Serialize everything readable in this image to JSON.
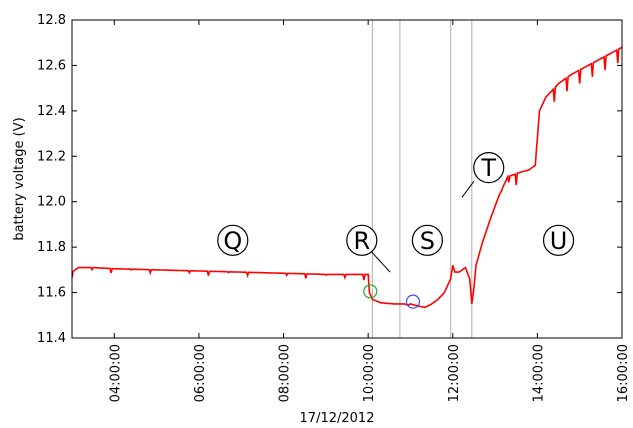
{
  "chart_data": {
    "type": "line",
    "xlabel": "17/12/2012",
    "ylabel": "battery voltage (V)",
    "xlim": [
      3.0,
      16.0
    ],
    "ylim": [
      11.4,
      12.8
    ],
    "x_ticks": [
      "04:00:00",
      "06:00:00",
      "08:00:00",
      "10:00:00",
      "12:00:00",
      "14:00:00",
      "16:00:00"
    ],
    "x_tick_hours": [
      4,
      6,
      8,
      10,
      12,
      14,
      16
    ],
    "y_ticks": [
      "11.4",
      "11.6",
      "11.8",
      "12.0",
      "12.2",
      "12.4",
      "12.6",
      "12.8"
    ],
    "grid": false,
    "vertical_lines_hours": [
      10.1,
      10.75,
      11.95,
      12.45
    ],
    "series": [
      {
        "color": "#ff0000",
        "x": [
          3.0,
          3.15,
          3.5,
          4.0,
          5.0,
          6.0,
          7.0,
          8.0,
          9.0,
          9.6,
          10.0,
          10.03,
          10.1,
          10.3,
          10.6,
          10.85,
          10.95,
          11.0,
          11.1,
          11.2,
          11.35,
          11.5,
          11.65,
          11.8,
          11.9,
          11.95,
          12.0,
          12.05,
          12.15,
          12.3,
          12.4,
          12.45,
          12.5,
          12.55,
          12.7,
          12.9,
          13.1,
          13.3,
          13.6,
          13.8,
          13.95,
          14.0,
          14.05,
          14.2,
          14.5,
          14.8,
          15.1,
          15.4,
          15.7,
          16.0
        ],
        "y": [
          11.69,
          11.71,
          11.71,
          11.705,
          11.7,
          11.695,
          11.69,
          11.685,
          11.68,
          11.68,
          11.68,
          11.6,
          11.57,
          11.555,
          11.55,
          11.55,
          11.545,
          11.55,
          11.545,
          11.54,
          11.535,
          11.55,
          11.57,
          11.6,
          11.64,
          11.66,
          11.72,
          11.69,
          11.69,
          11.71,
          11.66,
          11.55,
          11.62,
          11.72,
          11.82,
          11.93,
          12.03,
          12.11,
          12.13,
          12.14,
          12.16,
          12.28,
          12.4,
          12.46,
          12.52,
          12.56,
          12.59,
          12.62,
          12.65,
          12.68
        ]
      }
    ],
    "annotations": [
      {
        "label": "Q",
        "x": 6.8,
        "y": 11.83
      },
      {
        "label": "R",
        "x": 9.85,
        "y": 11.83
      },
      {
        "label": "S",
        "x": 11.4,
        "y": 11.83
      },
      {
        "label": "T",
        "x": 12.85,
        "y": 12.15
      },
      {
        "label": "U",
        "x": 14.5,
        "y": 11.83
      }
    ],
    "callout_lines": [
      {
        "x1": 10.05,
        "y1": 11.785,
        "x2": 10.52,
        "y2": 11.69
      },
      {
        "x1": 12.5,
        "y1": 12.09,
        "x2": 12.22,
        "y2": 12.02
      }
    ],
    "markers": [
      {
        "shape": "circle",
        "color": "#22aa22",
        "x": 10.05,
        "y": 11.605
      },
      {
        "shape": "circle",
        "color": "#4444ff",
        "x": 11.06,
        "y": 11.56
      }
    ]
  }
}
